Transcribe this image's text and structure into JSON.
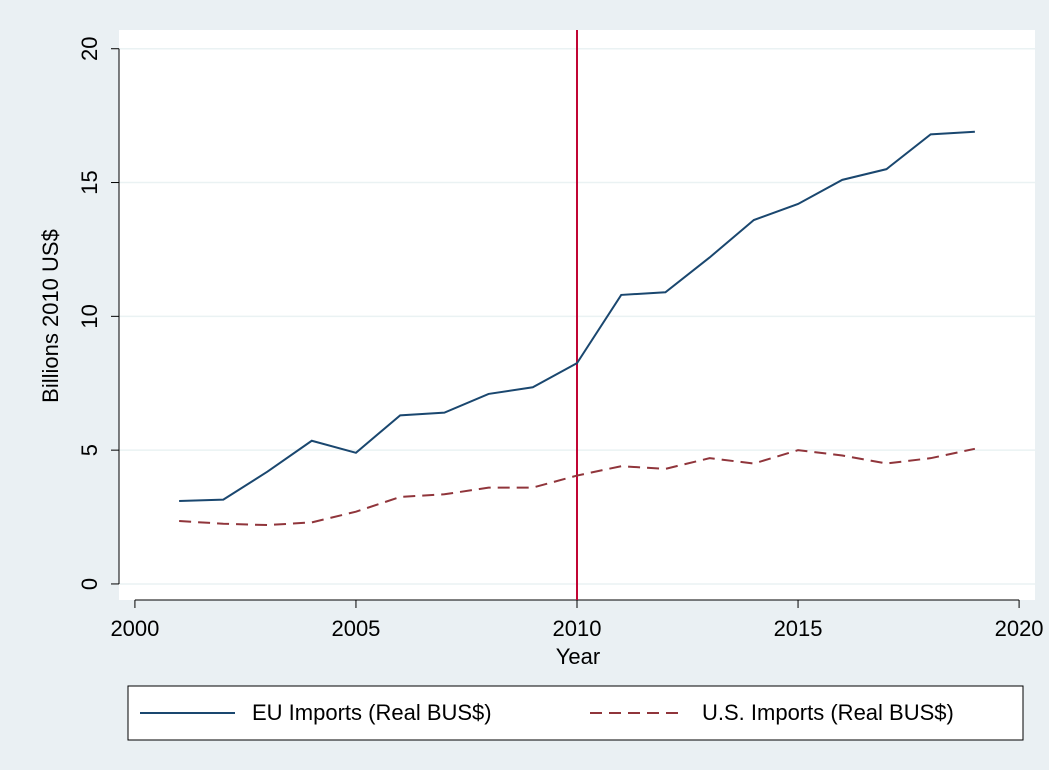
{
  "chart_data": {
    "type": "line",
    "x_label": "Year",
    "y_label": "Billions 2010 US$",
    "x": [
      2001,
      2002,
      2003,
      2004,
      2005,
      2006,
      2007,
      2008,
      2009,
      2010,
      2011,
      2012,
      2013,
      2014,
      2015,
      2016,
      2017,
      2018,
      2019
    ],
    "series": [
      {
        "name": "EU Imports (Real BUS$)",
        "color": "#1a476f",
        "dash": "solid",
        "values": [
          3.1,
          3.15,
          4.2,
          5.35,
          4.9,
          6.3,
          6.4,
          7.1,
          7.35,
          8.25,
          10.8,
          10.9,
          12.2,
          13.6,
          14.2,
          15.1,
          15.5,
          16.8,
          16.9
        ]
      },
      {
        "name": "U.S. Imports (Real BUS$)",
        "color": "#90353b",
        "dash": "dashed",
        "values": [
          2.35,
          2.25,
          2.2,
          2.3,
          2.7,
          3.25,
          3.35,
          3.6,
          3.6,
          4.05,
          4.4,
          4.3,
          4.7,
          4.5,
          5.0,
          4.8,
          4.5,
          4.7,
          5.05
        ]
      }
    ],
    "vline": 2010,
    "vline_color": "#c10534",
    "xlim": [
      1999.64,
      2020.36
    ],
    "ylim": [
      -0.6,
      20.7
    ],
    "xticks": [
      2000,
      2005,
      2010,
      2015,
      2020
    ],
    "yticks": [
      0,
      5,
      10,
      15,
      20
    ],
    "grid": true,
    "legend": "bottom"
  }
}
